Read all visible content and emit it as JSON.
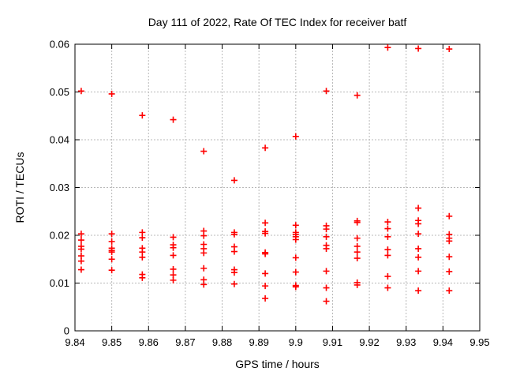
{
  "window": {
    "background": "#ffffff"
  },
  "colors": {
    "marker": "#ff0000",
    "grid": "#b8b8b8",
    "axis": "#000000",
    "text": "#000000",
    "background": "#ffffff"
  },
  "chart_data": {
    "type": "scatter",
    "title": "Day 111 of 2022, Rate Of TEC Index for receiver batf",
    "xlabel": "GPS time / hours",
    "ylabel": "ROTI / TECUs",
    "xlim": [
      9.84,
      9.95
    ],
    "ylim": [
      0,
      0.06
    ],
    "xtick_values": [
      9.84,
      9.85,
      9.86,
      9.87,
      9.88,
      9.89,
      9.9,
      9.91,
      9.92,
      9.93,
      9.94,
      9.95
    ],
    "xtick_labels": [
      "9.84",
      "9.85",
      "9.86",
      "9.87",
      "9.88",
      "9.89",
      "9.9",
      "9.91",
      "9.92",
      "9.93",
      "9.94",
      "9.95"
    ],
    "ytick_values": [
      0,
      0.01,
      0.02,
      0.03,
      0.04,
      0.05,
      0.06
    ],
    "ytick_labels": [
      "0",
      "0.01",
      "0.02",
      "0.03",
      "0.04",
      "0.05",
      "0.06"
    ],
    "grid": true,
    "legend": "none",
    "marker": "plus",
    "series": [
      {
        "name": "ROTI",
        "color": "#ff0000",
        "points": [
          [
            9.8417,
            0.0502
          ],
          [
            9.8417,
            0.0203
          ],
          [
            9.8417,
            0.019
          ],
          [
            9.8417,
            0.0177
          ],
          [
            9.8417,
            0.0171
          ],
          [
            9.8417,
            0.0157
          ],
          [
            9.8417,
            0.0146
          ],
          [
            9.8417,
            0.0128
          ],
          [
            9.85,
            0.0496
          ],
          [
            9.85,
            0.0203
          ],
          [
            9.85,
            0.0187
          ],
          [
            9.85,
            0.0173
          ],
          [
            9.85,
            0.0168
          ],
          [
            9.85,
            0.0165
          ],
          [
            9.85,
            0.015
          ],
          [
            9.85,
            0.0127
          ],
          [
            9.8583,
            0.0451
          ],
          [
            9.8583,
            0.0206
          ],
          [
            9.8583,
            0.0195
          ],
          [
            9.8583,
            0.0173
          ],
          [
            9.8583,
            0.0165
          ],
          [
            9.8583,
            0.0154
          ],
          [
            9.8583,
            0.0118
          ],
          [
            9.8583,
            0.0111
          ],
          [
            9.8667,
            0.0442
          ],
          [
            9.8667,
            0.0196
          ],
          [
            9.8667,
            0.018
          ],
          [
            9.8667,
            0.0174
          ],
          [
            9.8667,
            0.0158
          ],
          [
            9.8667,
            0.0129
          ],
          [
            9.8667,
            0.0117
          ],
          [
            9.8667,
            0.0106
          ],
          [
            9.875,
            0.0376
          ],
          [
            9.875,
            0.0209
          ],
          [
            9.875,
            0.0199
          ],
          [
            9.875,
            0.0181
          ],
          [
            9.875,
            0.0172
          ],
          [
            9.875,
            0.0163
          ],
          [
            9.875,
            0.0131
          ],
          [
            9.875,
            0.0107
          ],
          [
            9.875,
            0.0097
          ],
          [
            9.8833,
            0.0315
          ],
          [
            9.8833,
            0.0206
          ],
          [
            9.8833,
            0.0202
          ],
          [
            9.8833,
            0.0176
          ],
          [
            9.8833,
            0.0166
          ],
          [
            9.8833,
            0.0128
          ],
          [
            9.8833,
            0.0122
          ],
          [
            9.8833,
            0.0098
          ],
          [
            9.8917,
            0.0383
          ],
          [
            9.8917,
            0.0226
          ],
          [
            9.8917,
            0.0208
          ],
          [
            9.8917,
            0.0204
          ],
          [
            9.8917,
            0.0164
          ],
          [
            9.8917,
            0.0161
          ],
          [
            9.8917,
            0.012
          ],
          [
            9.8917,
            0.0094
          ],
          [
            9.8917,
            0.0068
          ],
          [
            9.9,
            0.0407
          ],
          [
            9.9,
            0.0221
          ],
          [
            9.9,
            0.0206
          ],
          [
            9.9,
            0.0202
          ],
          [
            9.9,
            0.0197
          ],
          [
            9.9,
            0.0191
          ],
          [
            9.9,
            0.0153
          ],
          [
            9.9,
            0.0123
          ],
          [
            9.9,
            0.0095
          ],
          [
            9.9,
            0.0092
          ],
          [
            9.9083,
            0.0502
          ],
          [
            9.9083,
            0.022
          ],
          [
            9.9083,
            0.0213
          ],
          [
            9.9083,
            0.0197
          ],
          [
            9.9083,
            0.0179
          ],
          [
            9.9083,
            0.0172
          ],
          [
            9.9083,
            0.0125
          ],
          [
            9.9083,
            0.009
          ],
          [
            9.9083,
            0.0062
          ],
          [
            9.9167,
            0.0493
          ],
          [
            9.9167,
            0.023
          ],
          [
            9.9167,
            0.0227
          ],
          [
            9.9167,
            0.0194
          ],
          [
            9.9167,
            0.0177
          ],
          [
            9.9167,
            0.0165
          ],
          [
            9.9167,
            0.0152
          ],
          [
            9.9167,
            0.0101
          ],
          [
            9.9167,
            0.0096
          ],
          [
            9.925,
            0.0593
          ],
          [
            9.925,
            0.0228
          ],
          [
            9.925,
            0.0214
          ],
          [
            9.925,
            0.0197
          ],
          [
            9.925,
            0.017
          ],
          [
            9.925,
            0.0158
          ],
          [
            9.925,
            0.0114
          ],
          [
            9.925,
            0.009
          ],
          [
            9.9333,
            0.0591
          ],
          [
            9.9333,
            0.0257
          ],
          [
            9.9333,
            0.0231
          ],
          [
            9.9333,
            0.0224
          ],
          [
            9.9333,
            0.0203
          ],
          [
            9.9333,
            0.0172
          ],
          [
            9.9333,
            0.0154
          ],
          [
            9.9333,
            0.0125
          ],
          [
            9.9333,
            0.0084
          ],
          [
            9.9417,
            0.059
          ],
          [
            9.9417,
            0.024
          ],
          [
            9.9417,
            0.0202
          ],
          [
            9.9417,
            0.0194
          ],
          [
            9.9417,
            0.0188
          ],
          [
            9.9417,
            0.0155
          ],
          [
            9.9417,
            0.0124
          ],
          [
            9.9417,
            0.0084
          ]
        ]
      }
    ]
  }
}
